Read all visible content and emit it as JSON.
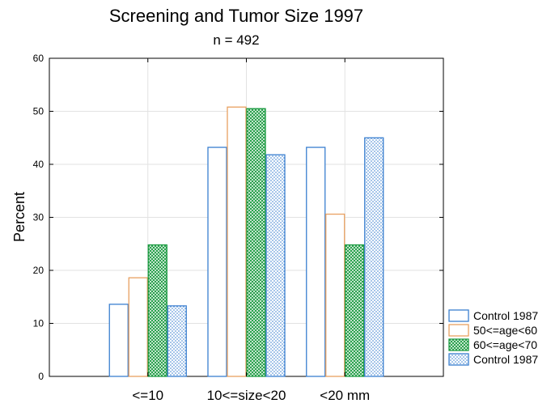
{
  "chart_data": {
    "type": "bar",
    "title": "Screening and Tumor Size 1997",
    "subtitle": "n = 492",
    "xlabel": "",
    "ylabel": "Percent",
    "ylim": [
      0,
      60
    ],
    "yticks": [
      0,
      10,
      20,
      30,
      40,
      50,
      60
    ],
    "grid": true,
    "legend_position": "bottom-right",
    "categories": [
      "<=10",
      "10<=size<20",
      "<20 mm"
    ],
    "series": [
      {
        "name": "Control 1987",
        "values": [
          13.6,
          43.2,
          43.2
        ],
        "color": "#3a7fd0",
        "fill": "solid"
      },
      {
        "name": "50<=age<60",
        "values": [
          18.6,
          50.8,
          30.6
        ],
        "color": "#e8a060",
        "fill": "solid"
      },
      {
        "name": "60<=age<70",
        "values": [
          24.8,
          50.5,
          24.8
        ],
        "color": "#1a9a40",
        "fill": "crosshatch"
      },
      {
        "name": "Control 1987",
        "values": [
          13.3,
          41.8,
          45.0
        ],
        "color": "#3a7fd0",
        "fill": "dotted"
      }
    ]
  }
}
